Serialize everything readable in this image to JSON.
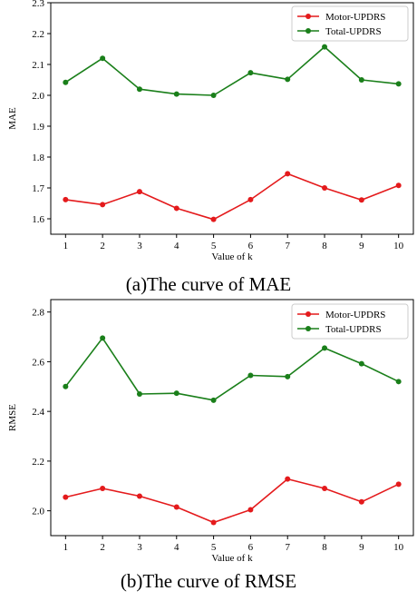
{
  "colors": {
    "motor": "#e41a1c",
    "total": "#1a7f1a",
    "frame": "#000000",
    "legend_border": "#cccccc"
  },
  "chart_data": [
    {
      "type": "line",
      "caption": "(a)The curve of MAE",
      "xlabel": "Value of k",
      "ylabel": "MAE",
      "x": [
        1,
        2,
        3,
        4,
        5,
        6,
        7,
        8,
        9,
        10
      ],
      "xticks": [
        "1",
        "2",
        "3",
        "4",
        "5",
        "6",
        "7",
        "8",
        "9",
        "10"
      ],
      "ylim": [
        1.55,
        2.3
      ],
      "yticks": [
        1.6,
        1.7,
        1.8,
        1.9,
        2.0,
        2.1,
        2.2,
        2.3
      ],
      "ytick_labels": [
        "1.6",
        "1.7",
        "1.8",
        "1.9",
        "2.0",
        "2.1",
        "2.2",
        "2.3"
      ],
      "grid": false,
      "legend_position": "top-right",
      "series": [
        {
          "name": "Motor-UPDRS",
          "color": "#e41a1c",
          "values": [
            1.662,
            1.646,
            1.688,
            1.634,
            1.598,
            1.662,
            1.746,
            1.7,
            1.661,
            1.708
          ]
        },
        {
          "name": "Total-UPDRS",
          "color": "#1a7f1a",
          "values": [
            2.042,
            2.12,
            2.02,
            2.004,
            2.0,
            2.073,
            2.052,
            2.157,
            2.05,
            2.037
          ]
        }
      ]
    },
    {
      "type": "line",
      "caption": "(b)The curve of RMSE",
      "xlabel": "Value of k",
      "ylabel": "RMSE",
      "x": [
        1,
        2,
        3,
        4,
        5,
        6,
        7,
        8,
        9,
        10
      ],
      "xticks": [
        "1",
        "2",
        "3",
        "4",
        "5",
        "6",
        "7",
        "8",
        "9",
        "10"
      ],
      "ylim": [
        1.9,
        2.85
      ],
      "yticks": [
        2.0,
        2.2,
        2.4,
        2.6,
        2.8
      ],
      "ytick_labels": [
        "2.0",
        "2.2",
        "2.4",
        "2.6",
        "2.8"
      ],
      "grid": false,
      "legend_position": "top-right",
      "series": [
        {
          "name": "Motor-UPDRS",
          "color": "#e41a1c",
          "values": [
            2.055,
            2.09,
            2.059,
            2.015,
            1.953,
            2.004,
            2.128,
            2.09,
            2.036,
            2.107
          ]
        },
        {
          "name": "Total-UPDRS",
          "color": "#1a7f1a",
          "values": [
            2.5,
            2.695,
            2.47,
            2.473,
            2.445,
            2.545,
            2.54,
            2.655,
            2.592,
            2.52
          ]
        }
      ]
    }
  ]
}
